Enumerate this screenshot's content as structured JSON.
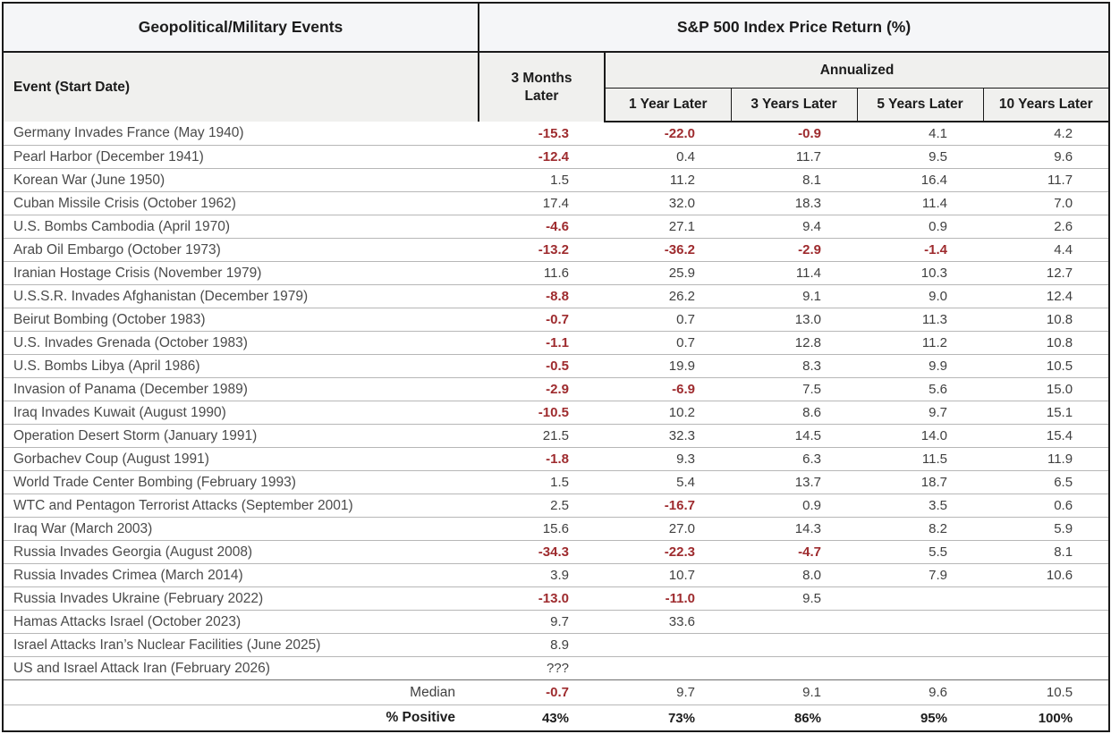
{
  "table": {
    "title_left": "Geopolitical/Military Events",
    "title_right": "S&P 500 Index Price Return (%)",
    "col_event": "Event (Start Date)",
    "col_3m": "3 Months Later",
    "annualized_label": "Annualized",
    "annualized_cols": [
      "1 Year Later",
      "3 Years Later",
      "5 Years Later",
      "10 Years Later"
    ],
    "rows": [
      {
        "event": "Germany Invades France (May 1940)",
        "values": [
          "-15.3",
          "-22.0",
          "-0.9",
          "4.1",
          "4.2"
        ]
      },
      {
        "event": "Pearl Harbor (December 1941)",
        "values": [
          "-12.4",
          "0.4",
          "11.7",
          "9.5",
          "9.6"
        ]
      },
      {
        "event": "Korean War (June 1950)",
        "values": [
          "1.5",
          "11.2",
          "8.1",
          "16.4",
          "11.7"
        ]
      },
      {
        "event": "Cuban Missile Crisis (October 1962)",
        "values": [
          "17.4",
          "32.0",
          "18.3",
          "11.4",
          "7.0"
        ]
      },
      {
        "event": "U.S. Bombs Cambodia (April 1970)",
        "values": [
          "-4.6",
          "27.1",
          "9.4",
          "0.9",
          "2.6"
        ]
      },
      {
        "event": "Arab Oil Embargo (October 1973)",
        "values": [
          "-13.2",
          "-36.2",
          "-2.9",
          "-1.4",
          "4.4"
        ]
      },
      {
        "event": "Iranian Hostage Crisis (November 1979)",
        "values": [
          "11.6",
          "25.9",
          "11.4",
          "10.3",
          "12.7"
        ]
      },
      {
        "event": "U.S.S.R. Invades Afghanistan (December 1979)",
        "values": [
          "-8.8",
          "26.2",
          "9.1",
          "9.0",
          "12.4"
        ]
      },
      {
        "event": "Beirut Bombing (October 1983)",
        "values": [
          "-0.7",
          "0.7",
          "13.0",
          "11.3",
          "10.8"
        ]
      },
      {
        "event": "U.S. Invades Grenada (October 1983)",
        "values": [
          "-1.1",
          "0.7",
          "12.8",
          "11.2",
          "10.8"
        ]
      },
      {
        "event": "U.S. Bombs Libya (April 1986)",
        "values": [
          "-0.5",
          "19.9",
          "8.3",
          "9.9",
          "10.5"
        ]
      },
      {
        "event": "Invasion of Panama (December 1989)",
        "values": [
          "-2.9",
          "-6.9",
          "7.5",
          "5.6",
          "15.0"
        ]
      },
      {
        "event": "Iraq Invades Kuwait (August 1990)",
        "values": [
          "-10.5",
          "10.2",
          "8.6",
          "9.7",
          "15.1"
        ]
      },
      {
        "event": "Operation Desert Storm (January 1991)",
        "values": [
          "21.5",
          "32.3",
          "14.5",
          "14.0",
          "15.4"
        ]
      },
      {
        "event": "Gorbachev Coup (August 1991)",
        "values": [
          "-1.8",
          "9.3",
          "6.3",
          "11.5",
          "11.9"
        ]
      },
      {
        "event": "World Trade Center Bombing (February 1993)",
        "values": [
          "1.5",
          "5.4",
          "13.7",
          "18.7",
          "6.5"
        ]
      },
      {
        "event": "WTC and Pentagon Terrorist Attacks (September 2001)",
        "values": [
          "2.5",
          "-16.7",
          "0.9",
          "3.5",
          "0.6"
        ]
      },
      {
        "event": "Iraq War (March 2003)",
        "values": [
          "15.6",
          "27.0",
          "14.3",
          "8.2",
          "5.9"
        ]
      },
      {
        "event": "Russia Invades Georgia (August 2008)",
        "values": [
          "-34.3",
          "-22.3",
          "-4.7",
          "5.5",
          "8.1"
        ]
      },
      {
        "event": "Russia Invades Crimea (March 2014)",
        "values": [
          "3.9",
          "10.7",
          "8.0",
          "7.9",
          "10.6"
        ]
      },
      {
        "event": "Russia Invades Ukraine (February 2022)",
        "values": [
          "-13.0",
          "-11.0",
          "9.5",
          "",
          ""
        ]
      },
      {
        "event": "Hamas Attacks Israel (October 2023)",
        "values": [
          "9.7",
          "33.6",
          "",
          "",
          ""
        ]
      },
      {
        "event": "Israel Attacks Iran’s Nuclear Facilities (June 2025)",
        "values": [
          "8.9",
          "",
          "",
          "",
          ""
        ]
      },
      {
        "event": "US and Israel Attack Iran (February 2026)",
        "values": [
          "???",
          "",
          "",
          "",
          ""
        ]
      }
    ],
    "median": {
      "label": "Median",
      "values": [
        "-0.7",
        "9.7",
        "9.1",
        "9.6",
        "10.5"
      ]
    },
    "pct_positive": {
      "label": "% Positive",
      "values": [
        "43%",
        "73%",
        "86%",
        "95%",
        "100%"
      ]
    }
  },
  "colors": {
    "negative_text": "#9e2b2e",
    "body_text": "#3f3f3f",
    "header_text": "#1c1c1c",
    "header_bg_top": "#f5f6f8",
    "header_bg_sub": "#f0f0ee",
    "border_strong": "#1a1a1a",
    "row_separator": "#b7b7b7"
  }
}
